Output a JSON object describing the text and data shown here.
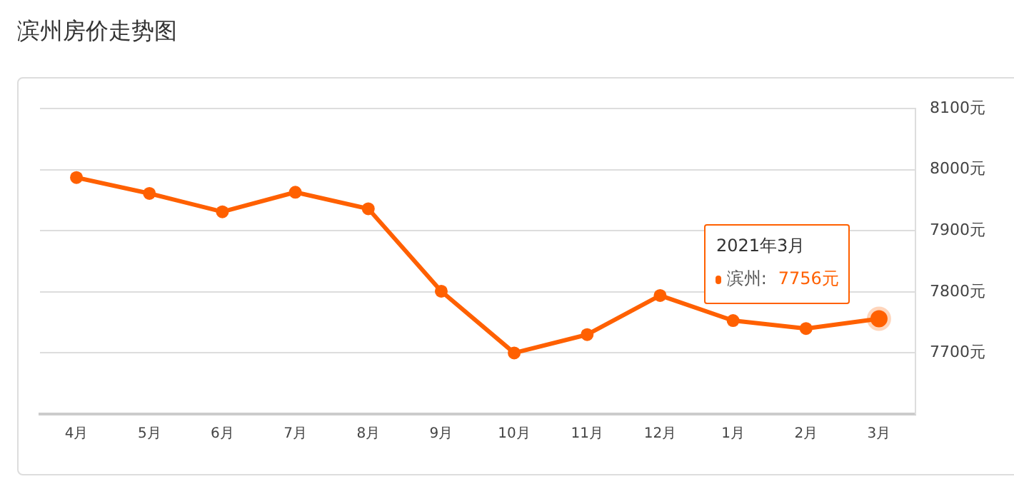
{
  "chart_data": {
    "type": "line",
    "title": "滨州房价走势图",
    "categories": [
      "4月",
      "5月",
      "6月",
      "7月",
      "8月",
      "9月",
      "10月",
      "11月",
      "12月",
      "1月",
      "2月",
      "3月"
    ],
    "series": [
      {
        "name": "滨州:",
        "color": "#ff6000",
        "values": [
          7987,
          7961,
          7931,
          7963,
          7936,
          7801,
          7700,
          7730,
          7794,
          7753,
          7740,
          7756
        ],
        "value_labels": [
          null,
          null,
          null,
          null,
          null,
          null,
          null,
          null,
          null,
          null,
          null,
          "7756元"
        ]
      }
    ],
    "ylim": [
      7600,
      8100
    ],
    "yticks": [
      {
        "value": 7600,
        "label": null
      },
      {
        "value": 7700,
        "label": "7700元"
      },
      {
        "value": 7800,
        "label": "7800元"
      },
      {
        "value": 7900,
        "label": "7900元"
      },
      {
        "value": 8000,
        "label": "8000元"
      },
      {
        "value": 8100,
        "label": "8100元"
      }
    ],
    "annotations": [
      "2021年3月"
    ],
    "grid": "y",
    "marker": "circle",
    "line_style": "solid",
    "legend": "right"
  }
}
